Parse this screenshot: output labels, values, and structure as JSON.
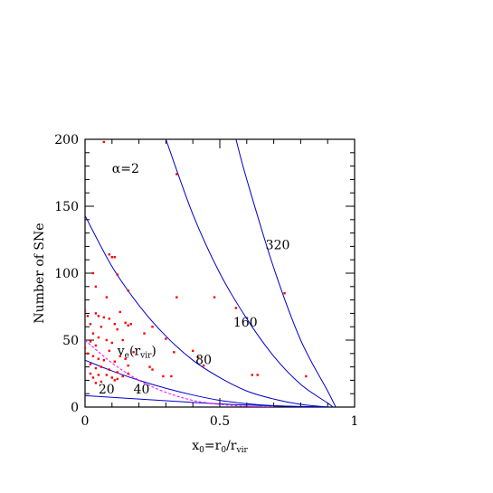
{
  "chart_data": {
    "type": "scatter",
    "xlim": [
      0,
      1
    ],
    "ylim": [
      0,
      200
    ],
    "xticks": [
      "0",
      "0.5",
      "1"
    ],
    "yticks": [
      "0",
      "50",
      "100",
      "150",
      "200"
    ],
    "ylabel": "Number of SNe",
    "xlabel": {
      "pre": "x",
      "pre_sub": "0",
      "mid": "=r",
      "mid_sub": "0",
      "post": "/r",
      "post_sub": "vir"
    },
    "annotation": "α=2",
    "colors": {
      "points": "#ff0000",
      "curves": "#0000cc",
      "escape_curve": "#ff00ff"
    },
    "series": [
      {
        "label": "20",
        "points": [
          [
            0.0,
            8.5
          ],
          [
            0.2,
            6.0
          ],
          [
            0.4,
            3.5
          ],
          [
            0.6,
            1.5
          ],
          [
            0.8,
            0.4
          ],
          [
            0.9,
            0.0
          ]
        ]
      },
      {
        "label": "40",
        "points": [
          [
            0.0,
            35
          ],
          [
            0.1,
            27
          ],
          [
            0.2,
            20
          ],
          [
            0.3,
            14
          ],
          [
            0.4,
            9
          ],
          [
            0.5,
            5
          ],
          [
            0.6,
            2.5
          ],
          [
            0.7,
            1
          ],
          [
            0.8,
            0.3
          ],
          [
            0.9,
            0.0
          ]
        ]
      },
      {
        "label": "80",
        "points": [
          [
            0.0,
            143
          ],
          [
            0.1,
            105
          ],
          [
            0.2,
            76
          ],
          [
            0.3,
            53
          ],
          [
            0.4,
            35
          ],
          [
            0.5,
            22
          ],
          [
            0.6,
            12
          ],
          [
            0.7,
            6
          ],
          [
            0.8,
            2
          ],
          [
            0.9,
            0.0
          ]
        ]
      },
      {
        "label": "160",
        "points": [
          [
            0.3,
            200
          ],
          [
            0.4,
            144
          ],
          [
            0.5,
            100
          ],
          [
            0.6,
            66
          ],
          [
            0.7,
            38
          ],
          [
            0.8,
            17
          ],
          [
            0.9,
            3
          ],
          [
            0.92,
            0.0
          ]
        ]
      },
      {
        "label": "320",
        "points": [
          [
            0.56,
            200
          ],
          [
            0.6,
            170
          ],
          [
            0.7,
            104
          ],
          [
            0.8,
            50
          ],
          [
            0.9,
            12
          ],
          [
            0.93,
            0.0
          ]
        ]
      }
    ],
    "escape_curve": {
      "label": {
        "pre": "v",
        "pre_sub": "e",
        "mid": "(r",
        "mid_sub": "vir",
        "post": ")"
      },
      "points": [
        [
          0.0,
          50
        ],
        [
          0.1,
          33
        ],
        [
          0.2,
          20
        ],
        [
          0.3,
          11
        ],
        [
          0.4,
          5
        ],
        [
          0.5,
          2
        ],
        [
          0.6,
          0.5
        ],
        [
          0.7,
          0.0
        ]
      ]
    },
    "scatter": [
      [
        0.07,
        198
      ],
      [
        0.34,
        174
      ],
      [
        0.09,
        114
      ],
      [
        0.1,
        112
      ],
      [
        0.11,
        112
      ],
      [
        0.12,
        99
      ],
      [
        0.03,
        100
      ],
      [
        0.04,
        90
      ],
      [
        0.16,
        87
      ],
      [
        0.08,
        82
      ],
      [
        0.34,
        82
      ],
      [
        0.48,
        82
      ],
      [
        0.56,
        74
      ],
      [
        0.74,
        85
      ],
      [
        0.0,
        72
      ],
      [
        0.01,
        68
      ],
      [
        0.04,
        70
      ],
      [
        0.05,
        68
      ],
      [
        0.07,
        67
      ],
      [
        0.09,
        66
      ],
      [
        0.13,
        71
      ],
      [
        0.11,
        62
      ],
      [
        0.02,
        62
      ],
      [
        0.06,
        60
      ],
      [
        0.15,
        63
      ],
      [
        0.16,
        61
      ],
      [
        0.17,
        62
      ],
      [
        0.12,
        58
      ],
      [
        0.25,
        60
      ],
      [
        0.03,
        55
      ],
      [
        0.05,
        52
      ],
      [
        0.02,
        49
      ],
      [
        0.04,
        46
      ],
      [
        0.08,
        50
      ],
      [
        0.09,
        42
      ],
      [
        0.1,
        48
      ],
      [
        0.14,
        50
      ],
      [
        0.22,
        55
      ],
      [
        0.3,
        51
      ],
      [
        0.0,
        44
      ],
      [
        0.01,
        40
      ],
      [
        0.03,
        38
      ],
      [
        0.05,
        36
      ],
      [
        0.07,
        35
      ],
      [
        0.11,
        34
      ],
      [
        0.13,
        38
      ],
      [
        0.15,
        36
      ],
      [
        0.18,
        41
      ],
      [
        0.33,
        41
      ],
      [
        0.4,
        42
      ],
      [
        0.42,
        37
      ],
      [
        0.02,
        32
      ],
      [
        0.04,
        29
      ],
      [
        0.06,
        30
      ],
      [
        0.09,
        28
      ],
      [
        0.12,
        26
      ],
      [
        0.16,
        31
      ],
      [
        0.24,
        30
      ],
      [
        0.25,
        28
      ],
      [
        0.44,
        31
      ],
      [
        0.02,
        25
      ],
      [
        0.03,
        22
      ],
      [
        0.05,
        24
      ],
      [
        0.08,
        24
      ],
      [
        0.1,
        22
      ],
      [
        0.12,
        21
      ],
      [
        0.14,
        23
      ],
      [
        0.16,
        25
      ],
      [
        0.29,
        23
      ],
      [
        0.32,
        23
      ],
      [
        0.62,
        24
      ],
      [
        0.64,
        24
      ],
      [
        0.82,
        23
      ],
      [
        0.04,
        18
      ],
      [
        0.06,
        19
      ],
      [
        0.11,
        20
      ]
    ],
    "label_positions": {
      "20": [
        0.05,
        10
      ],
      "40": [
        0.18,
        10
      ],
      "80": [
        0.41,
        32
      ],
      "160": [
        0.55,
        60
      ],
      "320": [
        0.67,
        118
      ],
      "escape": [
        0.12,
        39
      ],
      "annotation": [
        0.1,
        175
      ]
    }
  }
}
